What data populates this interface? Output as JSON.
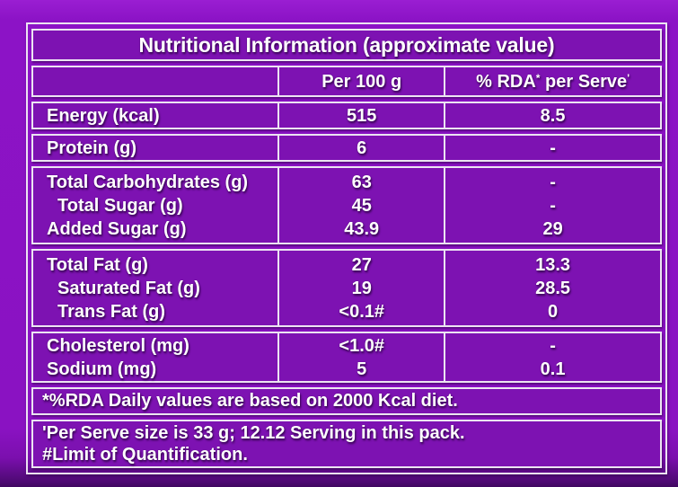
{
  "colors": {
    "background": "#8a12c2",
    "cell_fill": "#7d12b2",
    "border": "#ece4f2",
    "text": "#ffffff"
  },
  "table": {
    "title": "Nutritional Information (approximate value)",
    "header": {
      "col_label": "",
      "col_per100": "Per 100 g",
      "col_rda": {
        "prefix": "% RDA",
        "sup1": "*",
        "mid": " per Serve",
        "sup2": "'"
      }
    },
    "groups": [
      {
        "rows": [
          {
            "label": "Energy (kcal)",
            "per100": "515",
            "rda": "8.5"
          }
        ]
      },
      {
        "rows": [
          {
            "label": "Protein (g)",
            "per100": "6",
            "rda": "-"
          }
        ]
      },
      {
        "rows": [
          {
            "label": "Total Carbohydrates (g)",
            "per100": "63",
            "rda": "-"
          },
          {
            "label": "Total Sugar (g)",
            "per100": "45",
            "rda": "-",
            "indent": true
          },
          {
            "label": "Added Sugar (g)",
            "per100": "43.9",
            "rda": "29"
          }
        ]
      },
      {
        "rows": [
          {
            "label": "Total Fat (g)",
            "per100": "27",
            "rda": "13.3"
          },
          {
            "label": "Saturated Fat (g)",
            "per100": "19",
            "rda": "28.5",
            "indent": true
          },
          {
            "label": "Trans Fat (g)",
            "per100": "<0.1#",
            "rda": "0",
            "indent": true
          }
        ]
      },
      {
        "rows": [
          {
            "label": "Cholesterol (mg)",
            "per100": "<1.0#",
            "rda": "-"
          },
          {
            "label": "Sodium (mg)",
            "per100": "5",
            "rda": "0.1"
          }
        ]
      }
    ],
    "footnotes": [
      {
        "lines": [
          "*%RDA Daily values are based on 2000 Kcal diet."
        ]
      },
      {
        "lines": [
          "'Per Serve size is 33 g; 12.12 Serving in this pack.",
          "#Limit of Quantification."
        ]
      }
    ]
  }
}
